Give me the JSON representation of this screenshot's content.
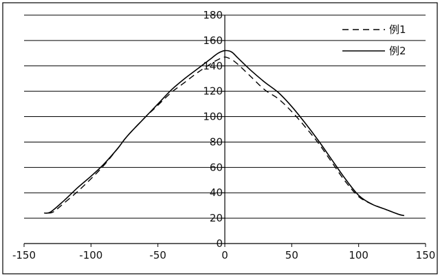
{
  "chart_data": {
    "type": "line",
    "title": "",
    "xlabel": "",
    "ylabel": "",
    "xlim": [
      -150,
      150
    ],
    "ylim": [
      0,
      180
    ],
    "x_ticks": [
      -150,
      -100,
      -50,
      0,
      50,
      100,
      150
    ],
    "y_ticks": [
      0,
      20,
      40,
      60,
      80,
      100,
      120,
      140,
      160,
      180
    ],
    "grid": "horizontal",
    "legend_position": "top-right",
    "series": [
      {
        "name": "例1",
        "style": "dashed",
        "color": "#000000",
        "x": [
          -132,
          -128,
          -120,
          -110,
          -100,
          -90,
          -80,
          -75,
          -70,
          -60,
          -50,
          -40,
          -30,
          -20,
          -10,
          -5,
          0,
          5,
          10,
          20,
          30,
          40,
          50,
          60,
          70,
          80,
          90,
          100,
          110,
          120,
          130,
          134
        ],
        "y": [
          24,
          25,
          32,
          41,
          51,
          62,
          75,
          82,
          88,
          99,
          109,
          119,
          127,
          135,
          142,
          145,
          147,
          145,
          141,
          131,
          121,
          114,
          104,
          92,
          79,
          64,
          49,
          37,
          31,
          27,
          23,
          22
        ]
      },
      {
        "name": "例2",
        "style": "solid",
        "color": "#000000",
        "x": [
          -135,
          -130,
          -120,
          -110,
          -100,
          -90,
          -80,
          -75,
          -70,
          -60,
          -50,
          -40,
          -30,
          -20,
          -10,
          -5,
          0,
          5,
          10,
          20,
          30,
          40,
          50,
          60,
          70,
          80,
          90,
          100,
          110,
          120,
          130,
          134
        ],
        "y": [
          24,
          25,
          34,
          44,
          53,
          63,
          75,
          82,
          88,
          99,
          110,
          121,
          130,
          138,
          146,
          150,
          152,
          151,
          146,
          136,
          127,
          119,
          108,
          95,
          81,
          66,
          51,
          38,
          31,
          27,
          23,
          22
        ]
      }
    ]
  }
}
